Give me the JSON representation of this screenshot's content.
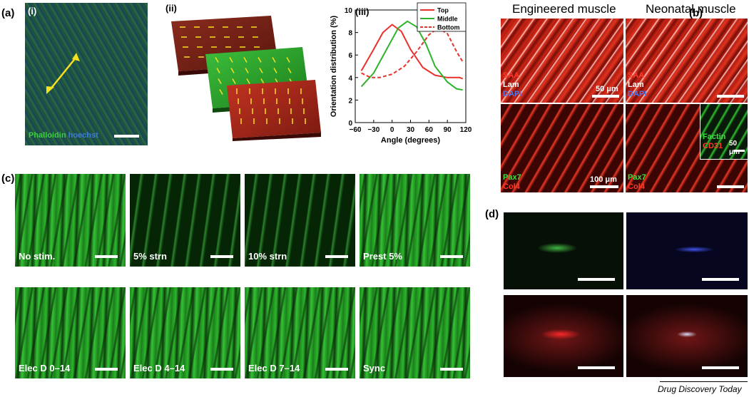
{
  "panel_labels": {
    "a": "(a)",
    "b": "(b)",
    "c": "(c)",
    "d": "(d)"
  },
  "subpanel_labels": {
    "i": "(i)",
    "ii": "(ii)",
    "iii": "(iii)"
  },
  "panel_a_i": {
    "stain_label_1": "Phalloidin",
    "stain_label_2": "hoechst"
  },
  "chart_data": {
    "type": "line",
    "title": "",
    "xlabel": "Angle (degrees)",
    "ylabel": "Orientation distribution (%)",
    "xlim": [
      -60,
      120
    ],
    "ylim": [
      0,
      10
    ],
    "xticks": [
      -60,
      -30,
      0,
      30,
      60,
      90,
      120
    ],
    "yticks": [
      0,
      2,
      4,
      6,
      8,
      10
    ],
    "legend_position": "top-right",
    "series": [
      {
        "name": "Top",
        "color": "#e8312a",
        "dash": "solid",
        "x": [
          -50,
          -30,
          -15,
          0,
          15,
          30,
          50,
          70,
          90,
          110,
          115
        ],
        "y": [
          4.6,
          6.5,
          8.0,
          8.7,
          8.1,
          6.5,
          4.9,
          4.2,
          4.0,
          4.0,
          3.9
        ]
      },
      {
        "name": "Middle",
        "color": "#2bb32b",
        "dash": "solid",
        "x": [
          -50,
          -30,
          -10,
          10,
          25,
          40,
          55,
          70,
          90,
          105,
          115
        ],
        "y": [
          3.2,
          4.4,
          6.4,
          8.4,
          9.0,
          8.5,
          7.0,
          5.0,
          3.6,
          3.0,
          2.9
        ]
      },
      {
        "name": "Bottom",
        "color": "#e8312a",
        "dash": "dashed",
        "x": [
          -50,
          -35,
          -20,
          0,
          20,
          40,
          60,
          75,
          90,
          105,
          115
        ],
        "y": [
          4.4,
          4.0,
          4.0,
          4.3,
          5.0,
          6.3,
          7.8,
          8.4,
          7.9,
          6.3,
          5.4
        ]
      }
    ]
  },
  "panel_b": {
    "header_left": "Engineered muscle",
    "header_right": "Neonatal muscle",
    "top_left_labels": [
      "SAA",
      "Lam",
      "DAPI"
    ],
    "top_right_labels": [
      "SAA",
      "Lam",
      "DAPI"
    ],
    "scale_top": "50 μm",
    "bottom_left_labels": [
      "Pax7",
      "Col4"
    ],
    "bottom_right_labels": [
      "Pax7",
      "Col4"
    ],
    "scale_bottom": "100 μm",
    "inset_labels": [
      "Factin",
      "CD31"
    ],
    "inset_scale": "50 μm"
  },
  "panel_c": {
    "row1": [
      "No stim.",
      "5% strn",
      "10% strn",
      "Prest 5%"
    ],
    "row2": [
      "Elec D 0–14",
      "Elec D 4–14",
      "Elec D 7–14",
      "Sync"
    ]
  },
  "footer": "Drug Discovery Today",
  "colors": {
    "top": "#e8312a",
    "middle": "#2bb32b",
    "bottom": "#e8312a",
    "arrow": "#f5e022"
  }
}
